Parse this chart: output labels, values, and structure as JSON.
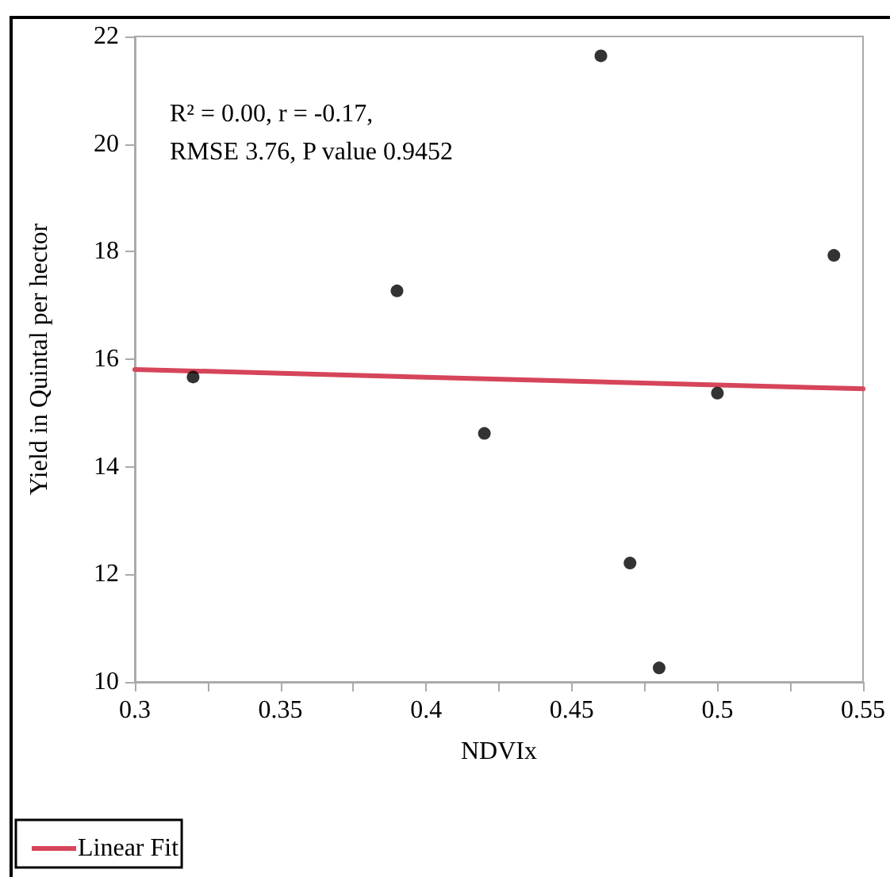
{
  "chart_data": {
    "type": "scatter",
    "xlabel": "NDVIx",
    "ylabel": "Yield in Quintal per hector",
    "annotations": [
      "R² = 0.00, r = -0.17,\nRMSE 3.76, P value 0.9452"
    ],
    "x": [
      0.32,
      0.39,
      0.42,
      0.46,
      0.47,
      0.48,
      0.5,
      0.54
    ],
    "series": [
      {
        "color": "#000000",
        "marker": "circle",
        "values": [
          15.67,
          17.27,
          14.62,
          21.64,
          12.21,
          10.26,
          15.37,
          17.93
        ]
      },
      {
        "type": "line",
        "name": "Linear Fit",
        "color": "#d6455a",
        "marker": "none",
        "x": [
          0.3,
          0.55
        ],
        "values": [
          15.81,
          15.45
        ]
      }
    ],
    "xlim": [
      0.3,
      0.55
    ],
    "xticks": [
      0.3,
      {
        "value": 0.325,
        "label": null
      },
      0.35,
      {
        "value": 0.375,
        "label": null
      },
      0.4,
      {
        "value": 0.425,
        "label": null
      },
      0.45,
      {
        "value": 0.475,
        "label": null
      },
      0.5,
      {
        "value": 0.525,
        "label": null
      },
      0.55
    ],
    "ylim": [
      10,
      22
    ],
    "yticks": [
      10,
      12,
      14,
      16,
      18,
      20,
      22
    ],
    "grid": false,
    "legend": "bottom left"
  }
}
